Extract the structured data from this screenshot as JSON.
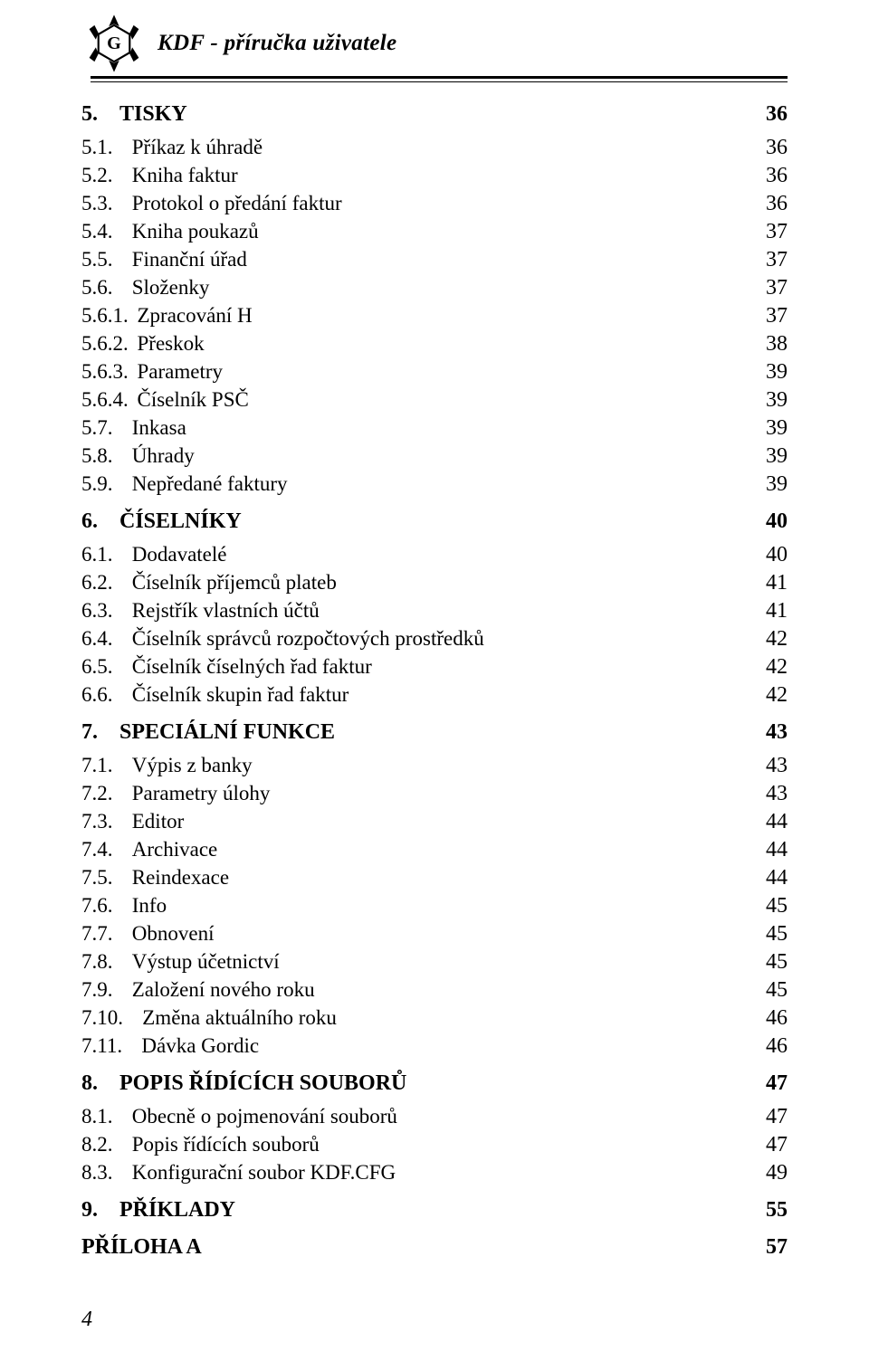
{
  "header": {
    "title": "KDF - příručka uživatele"
  },
  "colors": {
    "text": "#000000",
    "background": "#ffffff",
    "rule": "#000000"
  },
  "typography": {
    "font_family": "Times New Roman",
    "title_fontsize_pt": 19,
    "lvl1_fontsize_pt": 18,
    "lvl2_fontsize_pt": 17
  },
  "page_number": "4",
  "toc": [
    {
      "level": 1,
      "num": "5.",
      "label": "TISKY",
      "page": "36"
    },
    {
      "level": 2,
      "num": "5.1.",
      "label": "Příkaz k úhradě",
      "page": "36"
    },
    {
      "level": 2,
      "num": "5.2.",
      "label": "Kniha faktur",
      "page": "36"
    },
    {
      "level": 2,
      "num": "5.3.",
      "label": "Protokol o předání faktur",
      "page": "36"
    },
    {
      "level": 2,
      "num": "5.4.",
      "label": "Kniha poukazů",
      "page": "37"
    },
    {
      "level": 2,
      "num": "5.5.",
      "label": "Finanční úřad",
      "page": "37"
    },
    {
      "level": 2,
      "num": "5.6.",
      "label": "Složenky",
      "page": "37"
    },
    {
      "level": 2,
      "num": "5.6.1.",
      "label": "Zpracování H",
      "page": "37"
    },
    {
      "level": 2,
      "num": "5.6.2.",
      "label": "Přeskok",
      "page": "38"
    },
    {
      "level": 2,
      "num": "5.6.3.",
      "label": "Parametry",
      "page": "39"
    },
    {
      "level": 2,
      "num": "5.6.4.",
      "label": "Číselník PSČ",
      "page": "39"
    },
    {
      "level": 2,
      "num": "5.7.",
      "label": "Inkasa",
      "page": "39"
    },
    {
      "level": 2,
      "num": "5.8.",
      "label": "Úhrady",
      "page": "39"
    },
    {
      "level": 2,
      "num": "5.9.",
      "label": "Nepředané faktury",
      "page": "39"
    },
    {
      "level": 1,
      "num": "6.",
      "label": "ČÍSELNÍKY",
      "page": "40"
    },
    {
      "level": 2,
      "num": "6.1.",
      "label": "Dodavatelé",
      "page": "40"
    },
    {
      "level": 2,
      "num": "6.2.",
      "label": "Číselník příjemců plateb",
      "page": "41"
    },
    {
      "level": 2,
      "num": "6.3.",
      "label": "Rejstřík vlastních účtů",
      "page": "41"
    },
    {
      "level": 2,
      "num": "6.4.",
      "label": "Číselník správců rozpočtových prostředků",
      "page": "42"
    },
    {
      "level": 2,
      "num": "6.5.",
      "label": "Číselník číselných řad faktur",
      "page": "42"
    },
    {
      "level": 2,
      "num": "6.6.",
      "label": "Číselník skupin řad faktur",
      "page": "42"
    },
    {
      "level": 1,
      "num": "7.",
      "label": "SPECIÁLNÍ FUNKCE",
      "page": "43"
    },
    {
      "level": 2,
      "num": "7.1.",
      "label": "Výpis z banky",
      "page": "43"
    },
    {
      "level": 2,
      "num": "7.2.",
      "label": "Parametry úlohy",
      "page": "43"
    },
    {
      "level": 2,
      "num": "7.3.",
      "label": "Editor",
      "page": "44"
    },
    {
      "level": 2,
      "num": "7.4.",
      "label": "Archivace",
      "page": "44"
    },
    {
      "level": 2,
      "num": "7.5.",
      "label": "Reindexace",
      "page": "44"
    },
    {
      "level": 2,
      "num": "7.6.",
      "label": "Info",
      "page": "45"
    },
    {
      "level": 2,
      "num": "7.7.",
      "label": "Obnovení",
      "page": "45"
    },
    {
      "level": 2,
      "num": "7.8.",
      "label": "Výstup účetnictví",
      "page": "45"
    },
    {
      "level": 2,
      "num": "7.9.",
      "label": "Založení nového roku",
      "page": "45"
    },
    {
      "level": 2,
      "num": "7.10.",
      "label": "Změna aktuálního roku",
      "page": "46"
    },
    {
      "level": 2,
      "num": "7.11.",
      "label": "Dávka Gordic",
      "page": "46"
    },
    {
      "level": 1,
      "num": "8.",
      "label": "POPIS ŘÍDÍCÍCH SOUBORŮ",
      "page": "47"
    },
    {
      "level": 2,
      "num": "8.1.",
      "label": "Obecně o pojmenování souborů",
      "page": "47"
    },
    {
      "level": 2,
      "num": "8.2.",
      "label": "Popis řídících souborů",
      "page": "47"
    },
    {
      "level": 2,
      "num": "8.3.",
      "label": "Konfigurační soubor KDF.CFG",
      "page": "49"
    },
    {
      "level": 1,
      "num": "9.",
      "label": "PŘÍKLADY",
      "page": "55"
    },
    {
      "level": 1,
      "num": "",
      "label": "PŘÍLOHA A",
      "page": "57"
    }
  ]
}
